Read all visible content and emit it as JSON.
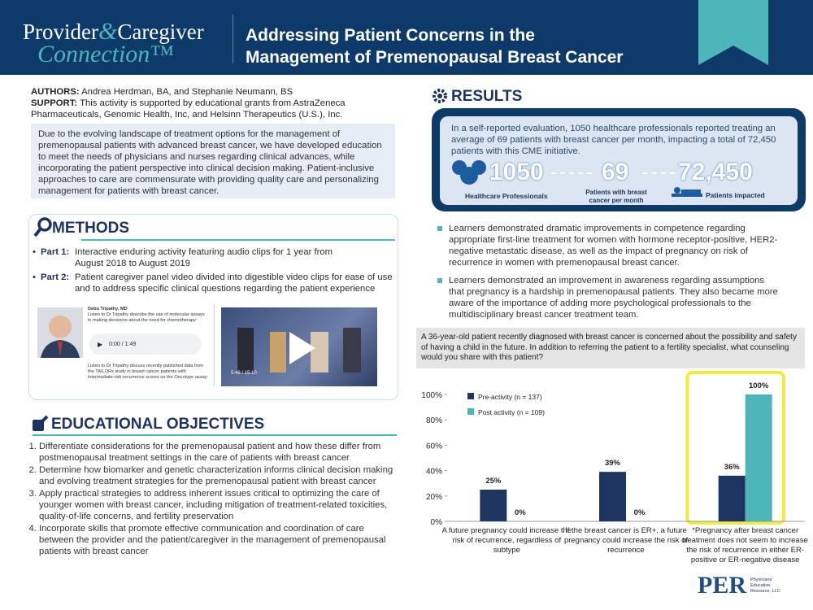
{
  "header": {
    "logo": {
      "word1": "Provider",
      "amp": "&",
      "word2": "Caregiver",
      "line2": "Connection™"
    },
    "title_line1": "Addressing Patient Concerns in the",
    "title_line2": "Management of Premenopausal Breast Cancer"
  },
  "authors": {
    "authors_label": "AUTHORS:",
    "authors_text": "Andrea Herdman, BA, and Stephanie Neumann, BS",
    "support_label": "SUPPORT:",
    "support_text": "This activity is supported by educational grants from AstraZeneca Pharmaceuticals, Genomic Health, Inc, and Helsinn Therapeutics (U.S.), Inc."
  },
  "intro": "Due to the evolving landscape of treatment options for the management of premenopausal patients with advanced breast cancer, we have developed education to meet the needs of physicians and nurses regarding clinical advances, while incorporating the patient perspective into clinical decision making. Patient-inclusive approaches to care are commensurate with providing quality care and personalizing management for patients with breast cancer.",
  "methods": {
    "heading": "METHODS",
    "parts": [
      {
        "label": "Part 1:",
        "text": "Interactive enduring activity featuring audio clips for 1 year from August 2018 to August 2019"
      },
      {
        "label": "Part 2:",
        "text": "Patient caregiver panel video divided into digestible video clips for ease of use and to address specific clinical questions regarding the patient experience"
      }
    ],
    "media": {
      "speaker": "Debu Tripathy, MD",
      "caption1": "Listen to Dr Tripathy describe the use of molecular assays in making decisions about the need for chemotherapy:",
      "audio_time": "0:00 / 1:49",
      "caption2": "Listen to Dr Tripathy discuss recently published data from the TAILORx study in breast cancer patients with intermediate-risk recurrence scores on the Oncotype assay:",
      "video_time": "5:46 / 15:10"
    }
  },
  "objectives": {
    "heading": "EDUCATIONAL OBJECTIVES",
    "items": [
      "Differentiate considerations for the premenopausal patient and how these differ from postmenopausal treatment settings in the care of patients with breast cancer",
      "Determine how biomarker and genetic characterization informs clinical decision making and evolving treatment strategies for the premenopausal patient with breast cancer",
      "Apply practical strategies to address inherent issues critical to optimizing the care of younger women with breast cancer, including mitigation of treatment-related toxicities, quality-of-life concerns, and fertility preservation",
      "Incorporate skills that promote effective communication and coordination of care between the provider and the patient/caregiver in the management of premenopausal patients with breast cancer"
    ]
  },
  "results": {
    "heading": "RESULTS",
    "summary": "In a self-reported evaluation, 1050 healthcare professionals reported treating an average of 69 patients with breast cancer per month, impacting a total of 72,450 patients with this CME initiative.",
    "stats": [
      {
        "number": "1050",
        "label": "Healthcare Professionals"
      },
      {
        "number": "69",
        "label": "Patients with breast cancer per month"
      },
      {
        "number": "72,450",
        "label": "Patients impacted"
      }
    ],
    "bullets": [
      "Learners demonstrated dramatic improvements in competence regarding appropriate first-line treatment for women with hormone receptor-positive, HER2-negative metastatic disease, as well as the impact of pregnancy on risk of recurrence in women with premenopausal breast cancer.",
      "Learners demonstrated an improvement in awareness regarding assumptions that pregnancy is a hardship in premenopausal patients. They also became more aware of the importance of adding more psychological professionals to the multidisciplinary breast cancer treatment team."
    ],
    "question": "A 36-year-old patient recently diagnosed with breast cancer is concerned about the possibility and safety of having a child in the future. In addition to referring the patient to a fertility specialist, what counseling would you share with this patient?"
  },
  "chart_data": {
    "type": "bar",
    "categories": [
      "A future pregnancy could increase the risk of recurrence, regardless of subtype",
      "If the breast cancer is ER+, a future pregnancy could increase the risk of recurrence",
      "*Pregnancy after breast cancer treatment does not seem to increase the risk of recurrence in either ER-positive or ER-negative disease"
    ],
    "series": [
      {
        "name": "Pre-activity (n = 137)",
        "color": "#1f3561",
        "values": [
          25,
          39,
          36
        ],
        "value_labels": [
          "25%",
          "39%",
          "36%"
        ]
      },
      {
        "name": "Post activity (n = 109)",
        "color": "#4db6bb",
        "values": [
          0,
          0,
          100
        ],
        "value_labels": [
          "0%",
          "0%",
          "100%"
        ]
      }
    ],
    "ylim": [
      0,
      100
    ],
    "yticks": [
      {
        "value": 0,
        "label": "0%"
      },
      {
        "value": 20,
        "label": "20%"
      },
      {
        "value": 40,
        "label": "40%"
      },
      {
        "value": 60,
        "label": "60%"
      },
      {
        "value": 80,
        "label": "80%"
      },
      {
        "value": 100,
        "label": "100%"
      }
    ],
    "grid": false,
    "highlight_category": 2,
    "highlight_color": "#f0ec3c"
  },
  "footer": {
    "logo": "PER",
    "org": "Physicians' Education Resource, LLC"
  }
}
